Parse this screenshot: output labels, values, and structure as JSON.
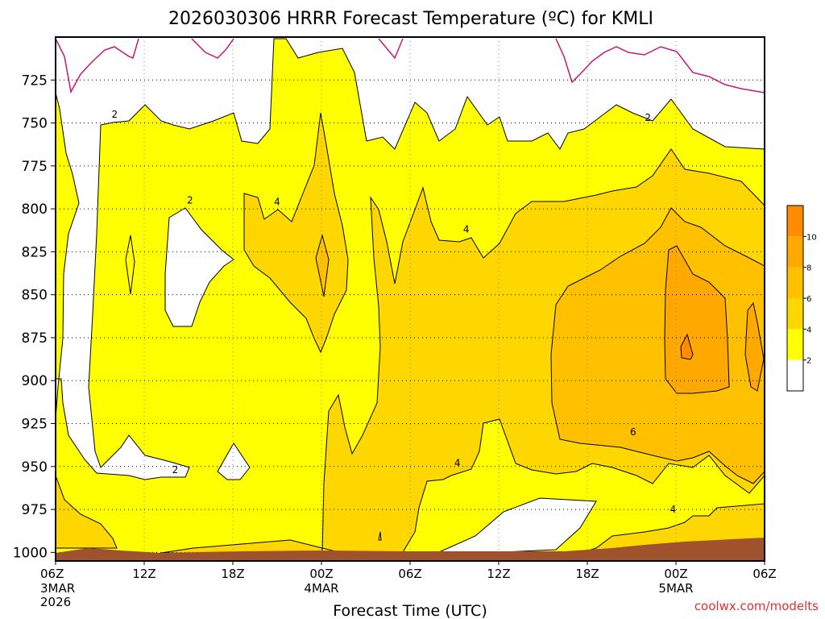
{
  "chart_data": {
    "type": "heatmap",
    "title": "2026030306 HRRR Forecast Temperature (ºC) for KMLI",
    "xlabel": "Forecast Time (UTC)",
    "ylabel": "",
    "x_ticks": [
      {
        "hour": 0,
        "label": "06Z",
        "sub": [
          "3MAR",
          "2026"
        ]
      },
      {
        "hour": 6,
        "label": "12Z",
        "sub": []
      },
      {
        "hour": 12,
        "label": "18Z",
        "sub": []
      },
      {
        "hour": 18,
        "label": "00Z",
        "sub": [
          "4MAR"
        ]
      },
      {
        "hour": 24,
        "label": "06Z",
        "sub": []
      },
      {
        "hour": 30,
        "label": "12Z",
        "sub": []
      },
      {
        "hour": 36,
        "label": "18Z",
        "sub": []
      },
      {
        "hour": 42,
        "label": "00Z",
        "sub": [
          "5MAR"
        ]
      },
      {
        "hour": 48,
        "label": "06Z",
        "sub": []
      }
    ],
    "xlim": [
      0,
      48
    ],
    "ylim": [
      700,
      1005
    ],
    "y_ticks": [
      725,
      750,
      775,
      800,
      825,
      850,
      875,
      900,
      925,
      950,
      975,
      1000
    ],
    "colorbar": {
      "levels": [
        0,
        2,
        4,
        6,
        8,
        10,
        12
      ],
      "tick_labels": [
        "2",
        "4",
        "6",
        "8",
        "10"
      ],
      "colors": [
        "#ffffff",
        "#ffff00",
        "#ffd700",
        "#ffc000",
        "#ffa800",
        "#ff8c00"
      ]
    },
    "contour_labels": [
      {
        "text": "2",
        "hour": 4,
        "p": 745
      },
      {
        "text": "2",
        "hour": 9.1,
        "p": 795
      },
      {
        "text": "4",
        "hour": 15,
        "p": 796
      },
      {
        "text": "4",
        "hour": 27.8,
        "p": 812
      },
      {
        "text": "2",
        "hour": 40.1,
        "p": 747
      },
      {
        "text": "6",
        "hour": 39.1,
        "p": 930
      },
      {
        "text": "4",
        "hour": 27.2,
        "p": 948
      },
      {
        "text": "2",
        "hour": 8.1,
        "p": 952
      },
      {
        "text": "4",
        "hour": 41.8,
        "p": 975
      }
    ],
    "ground_color": "#a0522d"
  },
  "credit": "coolwx.com/modelts",
  "credit_color": "#e03030"
}
